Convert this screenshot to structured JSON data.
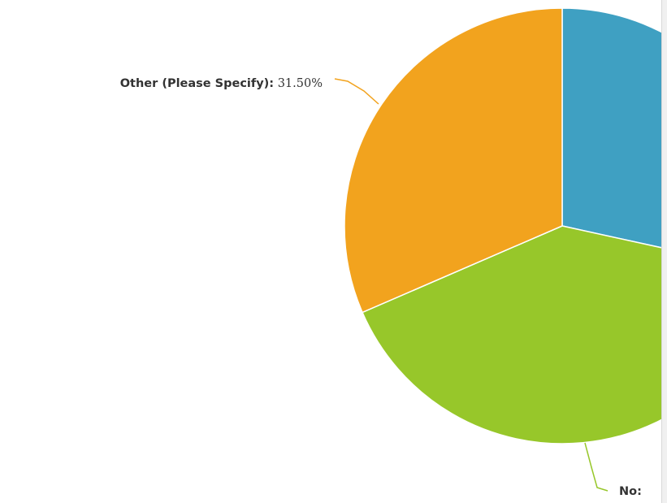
{
  "chart_data": {
    "type": "pie",
    "slices": [
      {
        "label": "",
        "value": 28.44,
        "color": "#3fa0c2",
        "value_label": ""
      },
      {
        "label": "No",
        "value": 40.06,
        "color": "#97c72a",
        "value_label": ""
      },
      {
        "label": "Other (Please Specify)",
        "value": 31.5,
        "color": "#f2a31e",
        "value_label": "31.50%"
      }
    ],
    "start_angle_deg": 0,
    "direction": "clockwise"
  }
}
